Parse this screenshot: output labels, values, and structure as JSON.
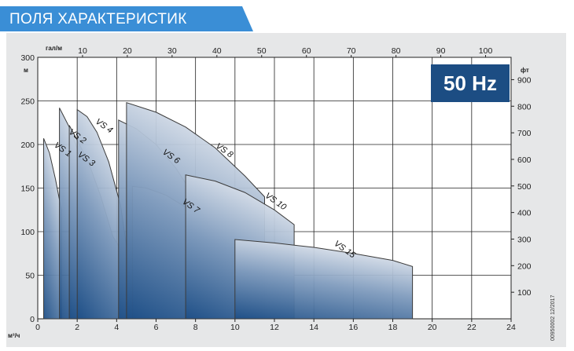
{
  "header": {
    "title": "ПОЛЯ ХАРАКТЕРИСТИК"
  },
  "side_code": "00950002 12/2017",
  "badge": {
    "text": "50 Hz"
  },
  "colors": {
    "banner": "#3a8ed6",
    "badge": "#1c4d83",
    "curve_dark": "#1e4f87",
    "curve_light": "#dde3ec",
    "panel": "#e6e7e8"
  },
  "chart_data": {
    "type": "area",
    "title": "",
    "x_axis_bottom": {
      "unit": "м³/ч",
      "range": [
        0,
        24
      ],
      "ticks": [
        0,
        2,
        4,
        6,
        8,
        10,
        12,
        14,
        16,
        18,
        20,
        22,
        24
      ]
    },
    "x_axis_top": {
      "unit": "гал/м",
      "range": [
        0,
        105.7
      ],
      "ticks": [
        10,
        20,
        30,
        40,
        50,
        60,
        70,
        80,
        90,
        100
      ]
    },
    "y_axis_left": {
      "unit": "м",
      "range": [
        0,
        300
      ],
      "ticks": [
        0,
        50,
        100,
        150,
        200,
        250,
        300
      ]
    },
    "y_axis_right": {
      "unit": "фт",
      "range": [
        0,
        984
      ],
      "ticks": [
        100,
        200,
        300,
        400,
        500,
        600,
        700,
        800,
        900
      ]
    },
    "grid": true,
    "series": [
      {
        "name": "VS 1",
        "label_at": [
          0.8,
          198
        ],
        "polygon": [
          [
            0.3,
            0
          ],
          [
            0.3,
            207
          ],
          [
            0.6,
            190
          ],
          [
            0.9,
            160
          ],
          [
            1.2,
            125
          ],
          [
            1.2,
            0
          ]
        ]
      },
      {
        "name": "VS 2",
        "label_at": [
          1.55,
          213
        ],
        "polygon": [
          [
            1.1,
            0
          ],
          [
            1.1,
            242
          ],
          [
            1.6,
            220
          ],
          [
            2.0,
            195
          ],
          [
            2.4,
            165
          ],
          [
            2.8,
            128
          ],
          [
            2.8,
            0
          ]
        ]
      },
      {
        "name": "VS 3",
        "label_at": [
          2.0,
          187
        ],
        "polygon": [
          [
            1.6,
            0
          ],
          [
            1.6,
            222
          ],
          [
            2.0,
            205
          ],
          [
            2.6,
            178
          ],
          [
            3.2,
            140
          ],
          [
            3.8,
            95
          ],
          [
            4.2,
            80
          ],
          [
            4.2,
            0
          ]
        ]
      },
      {
        "name": "VS 4",
        "label_at": [
          2.9,
          225
        ],
        "polygon": [
          [
            2.0,
            0
          ],
          [
            2.0,
            240
          ],
          [
            2.5,
            232
          ],
          [
            3.0,
            214
          ],
          [
            3.6,
            180
          ],
          [
            4.2,
            130
          ],
          [
            4.5,
            83
          ],
          [
            4.5,
            0
          ]
        ]
      },
      {
        "name": "VS 6",
        "label_at": [
          6.3,
          190
        ],
        "polygon": [
          [
            4.1,
            0
          ],
          [
            4.1,
            228
          ],
          [
            5.0,
            218
          ],
          [
            6.0,
            200
          ],
          [
            7.0,
            173
          ],
          [
            8.0,
            138
          ],
          [
            9.0,
            90
          ],
          [
            9.0,
            0
          ]
        ]
      },
      {
        "name": "VS 7",
        "label_at": [
          7.3,
          133
        ],
        "polygon": [
          [
            4.8,
            0
          ],
          [
            4.8,
            152
          ],
          [
            5.5,
            150
          ],
          [
            6.5,
            142
          ],
          [
            7.5,
            128
          ],
          [
            8.5,
            110
          ],
          [
            10.0,
            80
          ],
          [
            10.0,
            0
          ]
        ]
      },
      {
        "name": "VS 8",
        "label_at": [
          9.0,
          197
        ],
        "polygon": [
          [
            4.5,
            0
          ],
          [
            4.5,
            248
          ],
          [
            6.0,
            237
          ],
          [
            7.5,
            220
          ],
          [
            9.0,
            196
          ],
          [
            10.5,
            164
          ],
          [
            11.5,
            140
          ],
          [
            11.5,
            0
          ]
        ]
      },
      {
        "name": "VS 10",
        "label_at": [
          11.5,
          140
        ],
        "polygon": [
          [
            7.5,
            0
          ],
          [
            7.5,
            165
          ],
          [
            9.0,
            158
          ],
          [
            10.5,
            145
          ],
          [
            12.0,
            125
          ],
          [
            13.0,
            108
          ],
          [
            13.0,
            0
          ]
        ]
      },
      {
        "name": "VS 15",
        "label_at": [
          15.0,
          85
        ],
        "polygon": [
          [
            10.0,
            0
          ],
          [
            10.0,
            91
          ],
          [
            12.0,
            87
          ],
          [
            14.0,
            82
          ],
          [
            16.0,
            75
          ],
          [
            18.0,
            67
          ],
          [
            19.0,
            60
          ],
          [
            19.0,
            0
          ]
        ]
      }
    ]
  }
}
